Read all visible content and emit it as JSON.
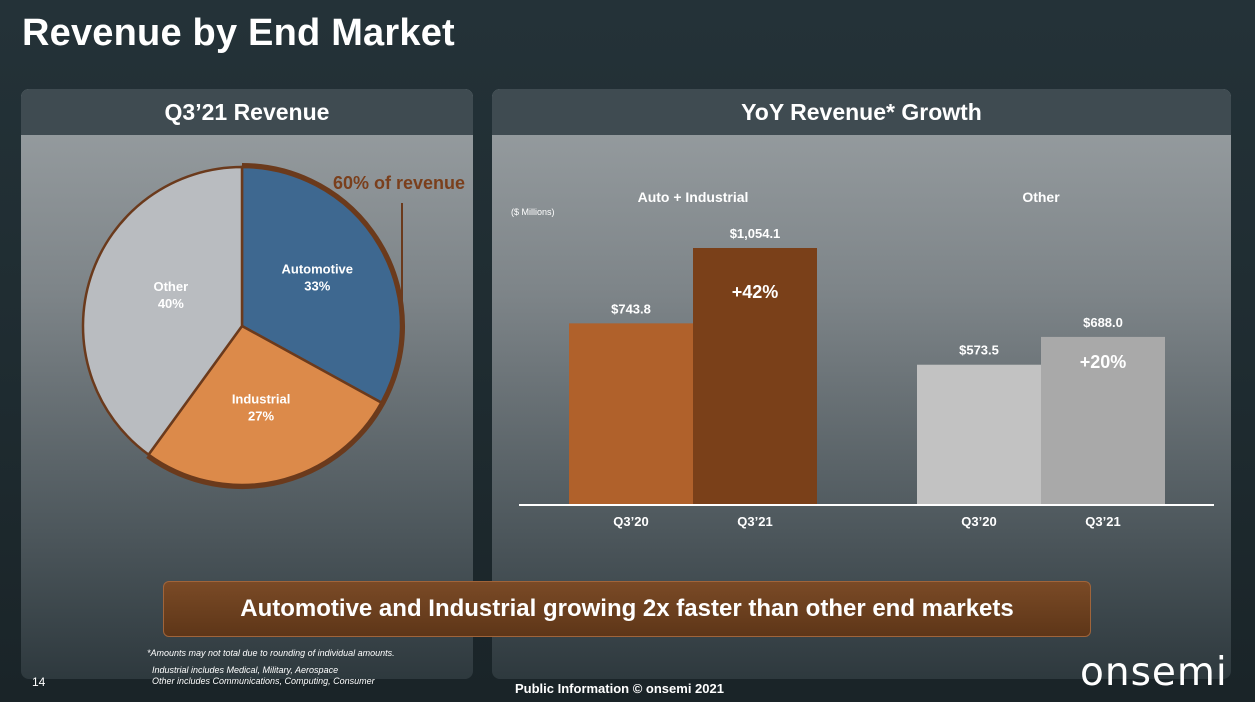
{
  "slide": {
    "title": "Revenue by End Market",
    "page_number": "14",
    "footer": "Public Information  © onsemi 2021",
    "logo": "onsemi",
    "banner": "Automotive and Industrial growing 2x faster than other end markets",
    "footnotes": [
      "*Amounts may not total due to rounding of individual amounts.",
      "Industrial includes Medical, Military, Aerospace",
      "Other includes Communications, Computing, Consumer"
    ]
  },
  "left_panel": {
    "title": "Q3’21 Revenue"
  },
  "right_panel": {
    "title": "YoY Revenue* Growth"
  },
  "chart_data": [
    {
      "type": "pie",
      "title": "Q3’21 Revenue",
      "slices": [
        {
          "label": "Automotive",
          "value": 33,
          "display": "33%",
          "color": "#3e6890"
        },
        {
          "label": "Industrial",
          "value": 27,
          "display": "27%",
          "color": "#dc8a4a"
        },
        {
          "label": "Other",
          "value": 40,
          "display": "40%",
          "color": "#b9bcc0"
        }
      ],
      "annotation": "60% of revenue",
      "annotation_color": "#7a3f1c"
    },
    {
      "type": "bar",
      "title": "YoY Revenue* Growth",
      "unit_label": "($ Millions)",
      "groups": [
        {
          "name": "Auto + Industrial",
          "bars": [
            {
              "category": "Q3’20",
              "value": 743.8,
              "label": "$743.8",
              "color": "#b0612b"
            },
            {
              "category": "Q3’21",
              "value": 1054.1,
              "label": "$1,054.1",
              "color": "#7a4019"
            }
          ],
          "growth": "+42%"
        },
        {
          "name": "Other",
          "bars": [
            {
              "category": "Q3’20",
              "value": 573.5,
              "label": "$573.5",
              "color": "#c2c2c2"
            },
            {
              "category": "Q3’21",
              "value": 688.0,
              "label": "$688.0",
              "color": "#a9a9a9"
            }
          ],
          "growth": "+20%"
        }
      ],
      "ylim": [
        0,
        1054.1
      ]
    }
  ]
}
